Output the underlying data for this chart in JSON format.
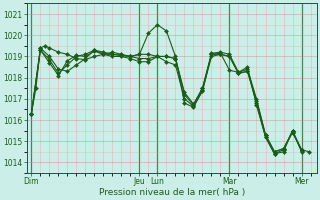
{
  "xlabel": "Pression niveau de la mer( hPa )",
  "bg_color": "#cceee8",
  "line_color": "#1a5c1a",
  "marker": "D",
  "marker_size": 2.0,
  "ylim": [
    1013.5,
    1021.5
  ],
  "yticks": [
    1014,
    1015,
    1016,
    1017,
    1018,
    1019,
    1020,
    1021
  ],
  "day_labels": [
    "Dim",
    "Jeu",
    "Lun",
    "Mar",
    "Mer"
  ],
  "day_positions": [
    0,
    72,
    84,
    132,
    180
  ],
  "xlim": [
    -3,
    190
  ],
  "series": [
    [
      0,
      1016.3,
      3,
      1017.5,
      6,
      1019.4,
      9,
      1019.5,
      12,
      1019.4,
      18,
      1019.2,
      24,
      1019.1,
      30,
      1018.9,
      36,
      1018.85,
      42,
      1019.0,
      48,
      1019.1,
      54,
      1019.1,
      60,
      1019.05,
      66,
      1019.0,
      72,
      1019.1,
      78,
      1019.1,
      84,
      1019.0,
      90,
      1018.75,
      96,
      1018.6,
      102,
      1017.0,
      108,
      1016.65,
      114,
      1017.35,
      120,
      1019.1,
      126,
      1019.15,
      132,
      1018.35,
      138,
      1018.25,
      144,
      1018.5,
      150,
      1016.7,
      156,
      1015.2,
      162,
      1014.4,
      168,
      1014.6,
      174,
      1015.5,
      180,
      1014.6,
      185,
      1014.5
    ],
    [
      0,
      1016.3,
      6,
      1019.4,
      12,
      1019.0,
      18,
      1018.4,
      24,
      1018.3,
      30,
      1018.6,
      36,
      1018.9,
      42,
      1019.3,
      48,
      1019.2,
      54,
      1019.1,
      60,
      1019.05,
      66,
      1019.0,
      72,
      1019.1,
      78,
      1020.1,
      84,
      1020.5,
      90,
      1020.2,
      96,
      1019.0,
      102,
      1016.8,
      108,
      1016.6,
      114,
      1017.4,
      120,
      1019.0,
      126,
      1019.1,
      132,
      1019.0,
      138,
      1018.2,
      144,
      1018.3,
      150,
      1016.8,
      156,
      1015.2,
      162,
      1014.4,
      168,
      1014.5,
      174,
      1015.5,
      180,
      1014.5
    ],
    [
      0,
      1016.3,
      6,
      1019.3,
      12,
      1018.85,
      18,
      1018.2,
      24,
      1018.6,
      30,
      1019.0,
      36,
      1019.1,
      42,
      1019.3,
      48,
      1019.1,
      54,
      1019.2,
      60,
      1019.1,
      66,
      1019.0,
      72,
      1018.9,
      78,
      1018.9,
      84,
      1019.0,
      90,
      1019.0,
      96,
      1018.9,
      102,
      1017.3,
      108,
      1016.75,
      114,
      1017.5,
      120,
      1019.15,
      126,
      1019.2,
      132,
      1019.1,
      138,
      1018.25,
      144,
      1018.4,
      150,
      1017.0,
      156,
      1015.3,
      162,
      1014.5,
      168,
      1014.65,
      174,
      1015.4,
      180,
      1014.6
    ],
    [
      0,
      1016.3,
      6,
      1019.3,
      12,
      1018.7,
      18,
      1018.1,
      24,
      1018.8,
      30,
      1019.05,
      36,
      1019.0,
      42,
      1019.25,
      48,
      1019.1,
      54,
      1019.0,
      60,
      1019.0,
      66,
      1018.9,
      72,
      1018.75,
      78,
      1018.75,
      84,
      1019.0,
      90,
      1019.0,
      96,
      1018.9,
      102,
      1017.2,
      108,
      1016.7,
      114,
      1017.5,
      120,
      1019.1,
      126,
      1019.1,
      132,
      1019.0,
      138,
      1018.2,
      144,
      1018.3,
      150,
      1016.9,
      156,
      1015.3,
      162,
      1014.5,
      168,
      1014.65,
      174,
      1015.45,
      180,
      1014.55
    ]
  ]
}
